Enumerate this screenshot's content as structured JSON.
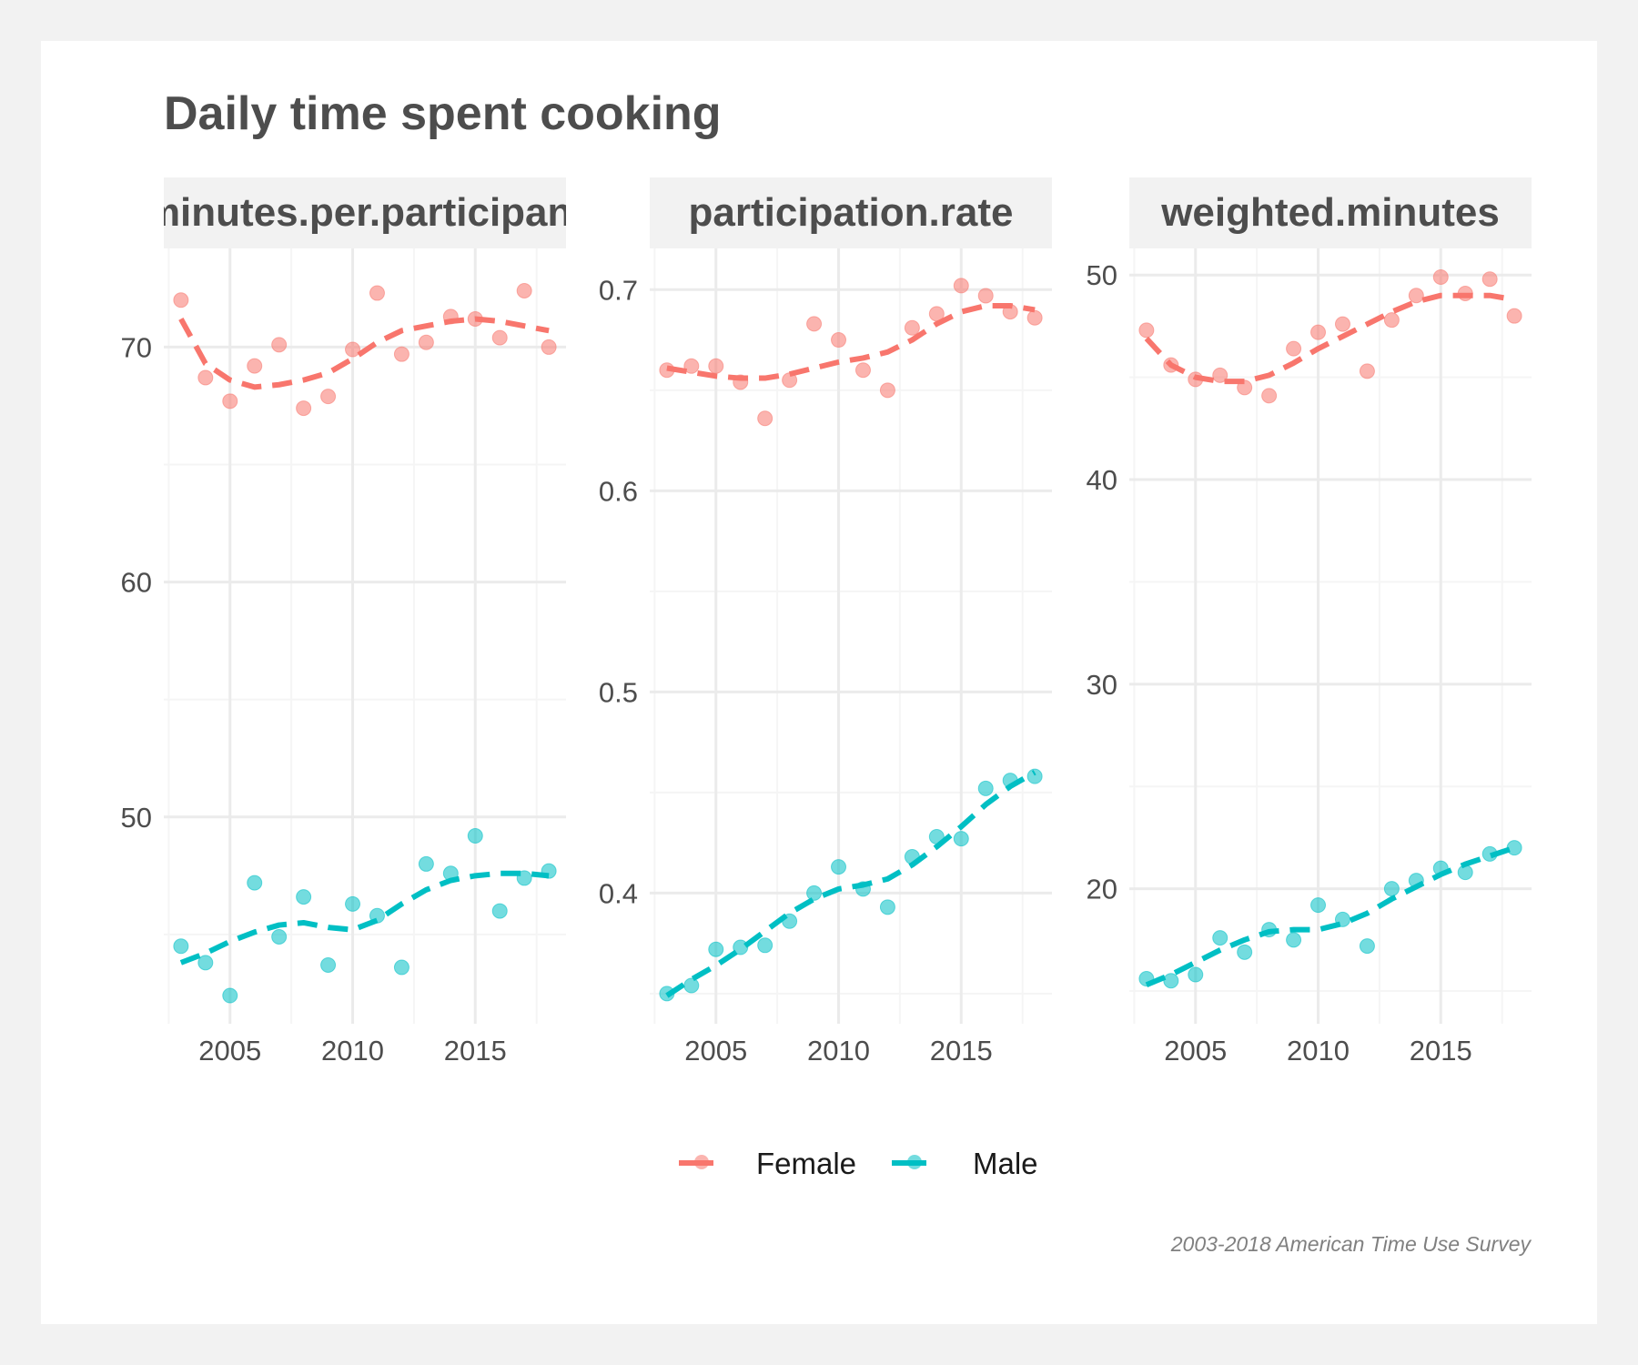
{
  "colors": {
    "page_bg": "#f2f2f2",
    "panel_bg": "#ffffff",
    "strip_bg": "#f2f2f2",
    "grid": "#ebebeb",
    "Female": "#f8766d",
    "Male": "#00bfc4"
  },
  "chart_data": {
    "type": "scatter",
    "title": "Daily time spent cooking",
    "caption": "2003-2018 American Time Use Survey",
    "legend": {
      "position": "bottom",
      "entries": [
        "Female",
        "Male"
      ]
    },
    "x_ticks": [
      "2005",
      "2010",
      "2015"
    ],
    "grid": true,
    "panels": [
      {
        "name": "minutes.per.participant",
        "strip_label": "minutes.per.participant",
        "x": [
          2003,
          2004,
          2005,
          2006,
          2007,
          2008,
          2009,
          2010,
          2011,
          2012,
          2013,
          2014,
          2015,
          2016,
          2017,
          2018
        ],
        "xlim": [
          2002.3,
          2018.7
        ],
        "ylim": [
          41.2,
          74.2
        ],
        "y_ticks": [
          "50",
          "60",
          "70"
        ],
        "y_tick_values": [
          50,
          60,
          70
        ],
        "series": [
          {
            "name": "Female",
            "values": [
              72.0,
              68.7,
              67.7,
              69.2,
              70.1,
              67.4,
              67.9,
              69.9,
              72.3,
              69.7,
              70.2,
              71.3,
              71.2,
              70.4,
              72.4,
              70.0
            ],
            "trend": [
              71.2,
              69.3,
              68.6,
              68.3,
              68.4,
              68.6,
              68.9,
              69.5,
              70.2,
              70.7,
              70.9,
              71.1,
              71.2,
              71.1,
              70.9,
              70.7
            ]
          },
          {
            "name": "Male",
            "values": [
              44.5,
              43.8,
              42.4,
              47.2,
              44.9,
              46.6,
              43.7,
              46.3,
              45.8,
              43.6,
              48.0,
              47.6,
              49.2,
              46.0,
              47.4,
              47.7
            ],
            "trend": [
              43.8,
              44.2,
              44.7,
              45.1,
              45.4,
              45.5,
              45.3,
              45.2,
              45.6,
              46.3,
              46.9,
              47.3,
              47.5,
              47.6,
              47.6,
              47.5
            ]
          }
        ]
      },
      {
        "name": "participation.rate",
        "strip_label": "participation.rate",
        "x": [
          2003,
          2004,
          2005,
          2006,
          2007,
          2008,
          2009,
          2010,
          2011,
          2012,
          2013,
          2014,
          2015,
          2016,
          2017,
          2018
        ],
        "xlim": [
          2002.3,
          2018.7
        ],
        "ylim": [
          0.335,
          0.7205
        ],
        "y_ticks": [
          "0.4",
          "0.5",
          "0.6",
          "0.7"
        ],
        "y_tick_values": [
          0.4,
          0.5,
          0.6,
          0.7
        ],
        "series": [
          {
            "name": "Female",
            "values": [
              0.66,
              0.662,
              0.662,
              0.654,
              0.636,
              0.655,
              0.683,
              0.675,
              0.66,
              0.65,
              0.681,
              0.688,
              0.702,
              0.697,
              0.689,
              0.686
            ],
            "trend": [
              0.661,
              0.659,
              0.657,
              0.656,
              0.656,
              0.658,
              0.661,
              0.664,
              0.666,
              0.669,
              0.675,
              0.683,
              0.689,
              0.692,
              0.692,
              0.69
            ]
          },
          {
            "name": "Male",
            "values": [
              0.35,
              0.354,
              0.372,
              0.373,
              0.374,
              0.386,
              0.4,
              0.413,
              0.402,
              0.393,
              0.418,
              0.428,
              0.427,
              0.452,
              0.456,
              0.458
            ],
            "trend": [
              0.349,
              0.357,
              0.364,
              0.372,
              0.381,
              0.39,
              0.397,
              0.402,
              0.404,
              0.407,
              0.414,
              0.423,
              0.433,
              0.444,
              0.453,
              0.46
            ]
          }
        ]
      },
      {
        "name": "weighted.minutes",
        "strip_label": "weighted.minutes",
        "x": [
          2003,
          2004,
          2005,
          2006,
          2007,
          2008,
          2009,
          2010,
          2011,
          2012,
          2013,
          2014,
          2015,
          2016,
          2017,
          2018
        ],
        "xlim": [
          2002.3,
          2018.7
        ],
        "ylim": [
          13.4,
          51.3
        ],
        "y_ticks": [
          "20",
          "30",
          "40",
          "50"
        ],
        "y_tick_values": [
          20,
          30,
          40,
          50
        ],
        "series": [
          {
            "name": "Female",
            "values": [
              47.3,
              45.6,
              44.9,
              45.1,
              44.5,
              44.1,
              46.4,
              47.2,
              47.6,
              45.3,
              47.8,
              49.0,
              49.9,
              49.1,
              49.8,
              48.0
            ],
            "trend": [
              46.9,
              45.6,
              45.0,
              44.8,
              44.8,
              45.1,
              45.7,
              46.4,
              47.0,
              47.6,
              48.2,
              48.7,
              49.0,
              49.0,
              49.0,
              48.8
            ]
          },
          {
            "name": "Male",
            "values": [
              15.6,
              15.5,
              15.8,
              17.6,
              16.9,
              18.0,
              17.5,
              19.2,
              18.5,
              17.2,
              20.0,
              20.4,
              21.0,
              20.8,
              21.7,
              22.0
            ],
            "trend": [
              15.3,
              15.8,
              16.4,
              17.0,
              17.5,
              17.9,
              18.0,
              18.0,
              18.3,
              18.8,
              19.5,
              20.1,
              20.7,
              21.2,
              21.6,
              22.0
            ]
          }
        ]
      }
    ]
  }
}
